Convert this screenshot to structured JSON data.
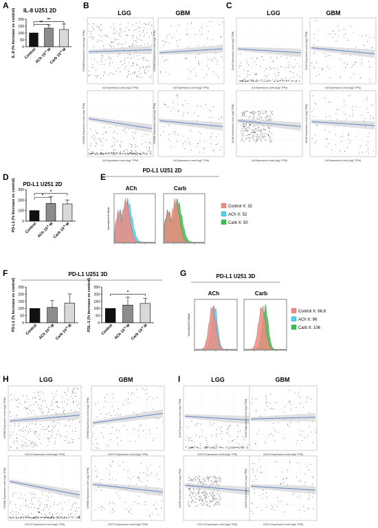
{
  "panels": {
    "A": {
      "letter": "A",
      "title": "IL-8 U251 2D"
    },
    "B": {
      "letter": "B"
    },
    "C": {
      "letter": "C"
    },
    "D": {
      "letter": "D",
      "title": "PD-L1 U251 2D"
    },
    "E": {
      "letter": "E",
      "title": "PD-L1 U251 2D",
      "col1": "ACh",
      "col2": "Carb"
    },
    "F": {
      "letter": "F",
      "title": "PD-L1 U251 3D"
    },
    "G": {
      "letter": "G",
      "title": "PD-L1 U251 3D",
      "col1": "ACh",
      "col2": "Carb"
    },
    "H": {
      "letter": "H"
    },
    "I": {
      "letter": "I"
    }
  },
  "labels": {
    "lgg": "LGG",
    "gbm": "GBM",
    "control": "Control",
    "ach_dose": "ACh 10",
    "carb_dose": "Carb 10",
    "exp": "-5",
    "molar": "M",
    "sig2": "**",
    "sig1": "*",
    "ylabel_il8": "IL-8 (% Increase vs control)",
    "ylabel_pdl1": "PD-L1 (% Increase vs control)",
    "ylabel_pdl1_alt": "PDL-1 (% Increase vs control)",
    "xlabel_il8": "IL8 Expression Level (log2 TPM)",
    "xlabel_cd274": "CD274 Expression Level (log2 TPM)",
    "ylabel_chrm3": "CHRM3 Expression Level (log2 TPM)",
    "ylabel_chrm1": "CHRM1 Expression Level (log2 TPM)",
    "ylabel_chat": "CHAT Expression Level (log2 TPM)",
    "ylabel_ache": "ACHE Expression Level (log2 TPM)",
    "flow_x": "",
    "flow_y": "Normalized To Mode"
  },
  "legends": {
    "E": [
      {
        "label": "Control X: 32",
        "color": "#f08a80"
      },
      {
        "label": "ACh X: 52",
        "color": "#4fd2f0"
      },
      {
        "label": "Carb X: 50",
        "color": "#34c24a"
      }
    ],
    "G": [
      {
        "label": "Control X: 66.8",
        "color": "#f08a80"
      },
      {
        "label": "ACh X: 96",
        "color": "#4fd2f0"
      },
      {
        "label": "Carb X: 106",
        "color": "#34c24a"
      }
    ]
  },
  "colors": {
    "control": "#111111",
    "ach": "#8c8c8c",
    "carb": "#d9d9d9",
    "regression": "#5b84c4",
    "ci": "#d4d4d4",
    "scatter": "#222222"
  },
  "chart_data": [
    {
      "id": "A",
      "type": "bar",
      "title": "IL-8 U251 2D",
      "categories": [
        "Control",
        "ACh 10-5 M",
        "Carb 10-5 M"
      ],
      "values": [
        100,
        135,
        125
      ],
      "errors": [
        0,
        25,
        40
      ],
      "ylim": [
        0,
        200
      ],
      "yticks": [
        0,
        50,
        100,
        150,
        200
      ],
      "ylabel": "IL-8 (% Increase vs control)"
    },
    {
      "id": "D",
      "type": "bar",
      "title": "PD-L1 U251 2D",
      "categories": [
        "Control",
        "ACh 10-5 M",
        "Carb 10-5 M"
      ],
      "values": [
        100,
        168,
        163
      ],
      "errors": [
        0,
        65,
        38
      ],
      "ylim": [
        0,
        300
      ],
      "yticks": [
        0,
        100,
        200,
        300
      ],
      "ylabel": "PD-L1 (% Increase vs control)"
    },
    {
      "id": "F1",
      "type": "bar",
      "title": "PD-L1 U251 3D",
      "categories": [
        "Control",
        "ACh 10-5 M",
        "Carb 10-5 M"
      ],
      "values": [
        100,
        107,
        137
      ],
      "errors": [
        0,
        48,
        65
      ],
      "ylim": [
        0,
        250
      ],
      "yticks": [
        0,
        50,
        100,
        150,
        200,
        250
      ],
      "ylabel": "PD-L1 (% Increase vs control)"
    },
    {
      "id": "F2",
      "type": "bar",
      "categories": [
        "Control",
        "ACh 10-5 M",
        "Carb 10-5 M"
      ],
      "values": [
        100,
        123,
        135
      ],
      "errors": [
        0,
        55,
        35
      ],
      "ylim": [
        0,
        250
      ],
      "yticks": [
        0,
        50,
        100,
        150,
        200,
        250
      ],
      "ylabel": "PDL-1 (% Increase vs control)"
    }
  ]
}
